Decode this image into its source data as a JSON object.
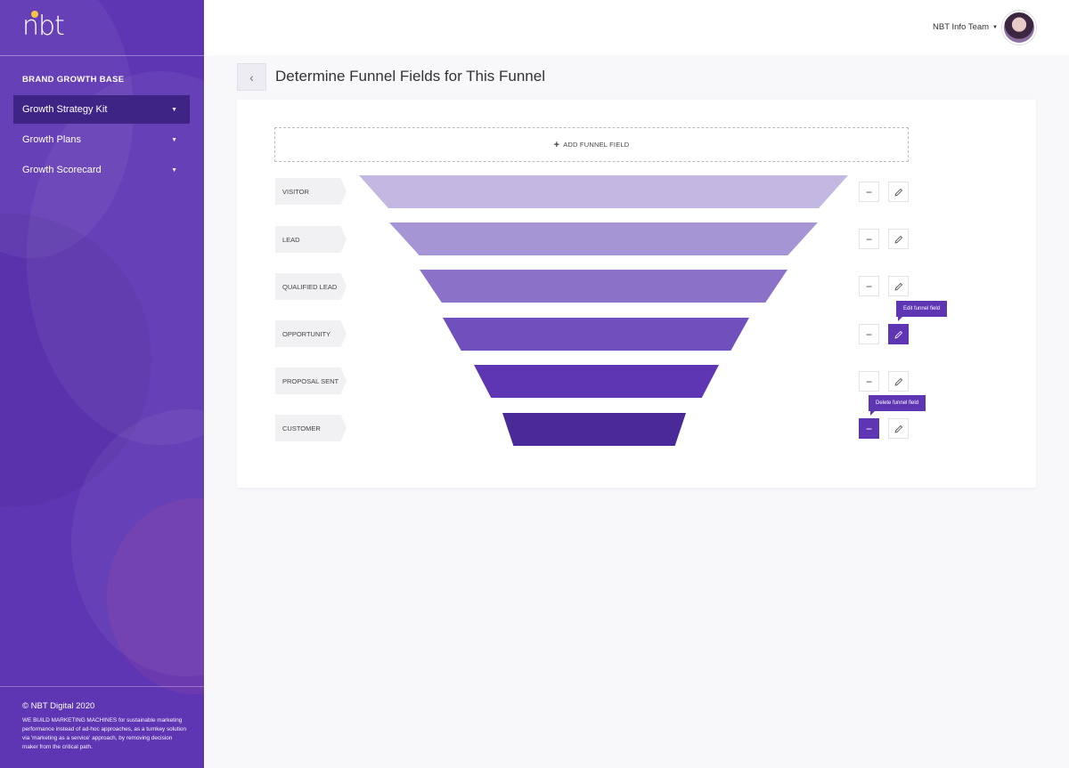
{
  "brand": {
    "logo_text": "nbt",
    "accent": "#f6c343",
    "primary": "#5e36b4",
    "primary_dark": "#3e2585"
  },
  "sidebar": {
    "section_title": "BRAND GROWTH BASE",
    "items": [
      {
        "label": "Growth Strategy Kit",
        "active": true
      },
      {
        "label": "Growth Plans",
        "active": false
      },
      {
        "label": "Growth Scorecard",
        "active": false
      }
    ],
    "copyright": "© NBT Digital 2020",
    "tagline": "WE BUILD MARKETING MACHINES for sustainable marketing performance instead of ad-hoc approaches, as a turnkey solution via 'marketing as a service' approach, by removing decision maker from the critical path."
  },
  "header": {
    "user_name": "NBT Info Team",
    "avatar_icon": "user-avatar"
  },
  "page": {
    "title": "Determine Funnel Fields for This Funnel",
    "add_field_label": "ADD FUNNEL FIELD"
  },
  "funnel": {
    "stages": [
      {
        "label": "VISITOR",
        "color": "#c2b8e1"
      },
      {
        "label": "LEAD",
        "color": "#a595d5"
      },
      {
        "label": "QUALIFIED LEAD",
        "color": "#8b72c8"
      },
      {
        "label": "OPPORTUNITY",
        "color": "#7050bd"
      },
      {
        "label": "PROPOSAL SENT",
        "color": "#5e36b4"
      },
      {
        "label": "CUSTOMER",
        "color": "#4a2a99"
      }
    ]
  },
  "tooltips": {
    "edit": "Edit funnel field",
    "delete": "Delete funnel field"
  }
}
